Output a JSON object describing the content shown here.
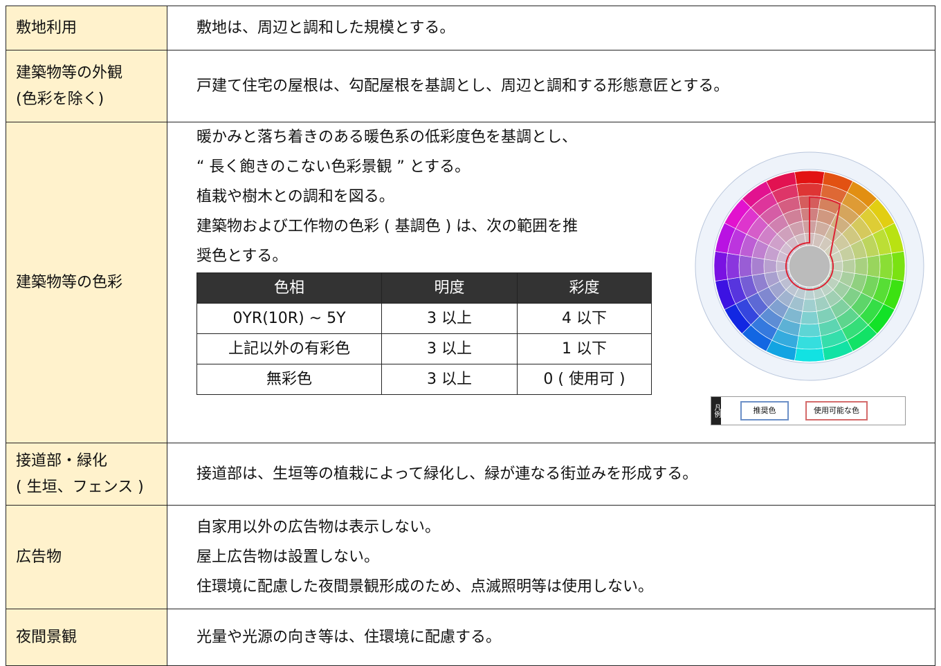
{
  "rows": [
    {
      "label": [
        "敷地利用"
      ],
      "content": [
        "敷地は、周辺と調和した規模とする。"
      ]
    },
    {
      "label": [
        "建築物等の外観",
        "(色彩を除く)"
      ],
      "content": [
        "戸建て住宅の屋根は、勾配屋根を基調とし、周辺と調和する形態意匠とする。"
      ]
    },
    {
      "label": [
        "建築物等の色彩"
      ],
      "content": [
        "暖かみと落ち着きのある暖色系の低彩度色を基調とし、",
        "“ 長く飽きのこない色彩景観 ” とする。",
        "植栽や樹木との調和を図る。",
        "建築物および工作物の色彩 ( 基調色 ) は、次の範囲を推",
        "奨色とする。"
      ],
      "table": {
        "header": [
          "色相",
          "明度",
          "彩度"
        ],
        "rows": [
          [
            "0YR(10R) ~ 5Y",
            "3 以上",
            "4 以下"
          ],
          [
            "上記以外の有彩色",
            "3 以上",
            "1 以下"
          ],
          [
            "無彩色",
            "3 以上",
            "0 ( 使用可 )"
          ]
        ]
      },
      "legend": {
        "title": "凡例",
        "items": [
          "推奨色",
          "使用可能な色"
        ]
      }
    },
    {
      "label": [
        "接道部・緑化",
        "( 生垣、フェンス )"
      ],
      "content": [
        "接道部は、生垣等の植栽によって緑化し、緑が連なる街並みを形成する。"
      ]
    },
    {
      "label": [
        "広告物"
      ],
      "content": [
        "自家用以外の広告物は表示しない。",
        "屋上広告物は設置しない。",
        "住環境に配慮した夜間景観形成のため、点滅照明等は使用しない。"
      ]
    },
    {
      "label": [
        "夜間景観"
      ],
      "content": [
        "光量や光源の向き等は、住環境に配慮する。"
      ]
    }
  ]
}
